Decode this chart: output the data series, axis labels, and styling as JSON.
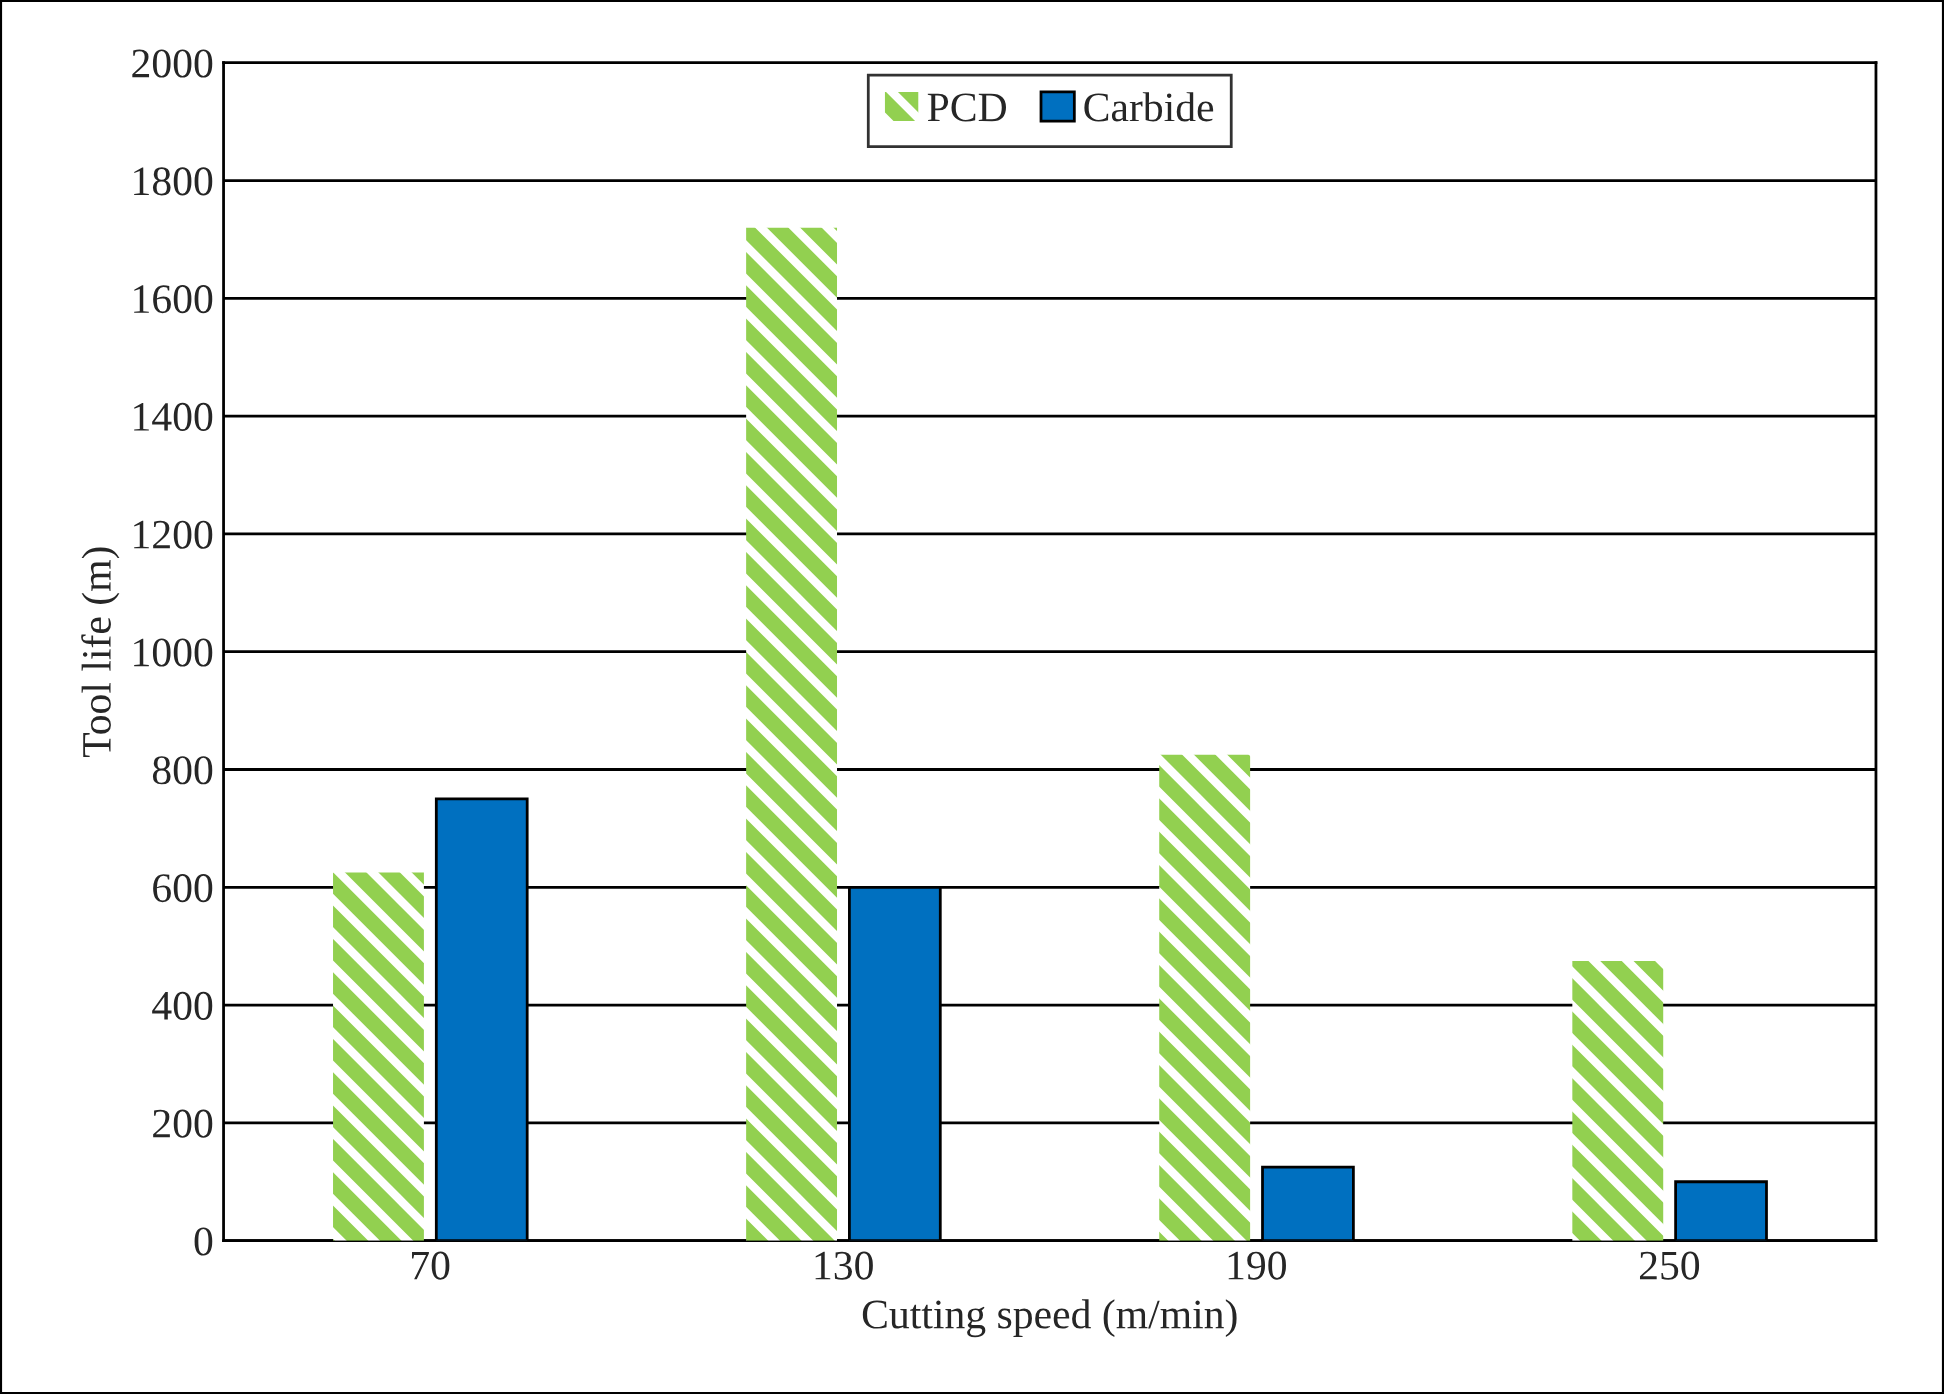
{
  "chart_data": {
    "type": "bar",
    "xlabel": "Cutting speed (m/min)",
    "ylabel": "Tool life (m)",
    "categories": [
      "70",
      "130",
      "190",
      "250"
    ],
    "series": [
      {
        "name": "PCD",
        "color": "#92d050",
        "values": [
          625,
          1720,
          825,
          475
        ]
      },
      {
        "name": "Carbide",
        "color": "#0070c0",
        "values": [
          750,
          600,
          125,
          100
        ]
      }
    ],
    "ylim": [
      0,
      2000
    ],
    "yticks": [
      0,
      200,
      400,
      600,
      800,
      1000,
      1200,
      1400,
      1600,
      1800,
      2000
    ],
    "grid": "y",
    "legend": "top"
  }
}
